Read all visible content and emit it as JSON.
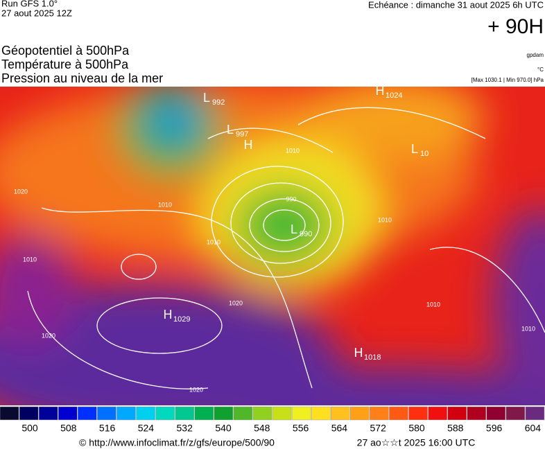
{
  "header": {
    "run": "Run GFS 1.0°",
    "date": "27 aout 2025 12Z",
    "valid": "Echéance : dimanche 31 aout 2025 6h UTC",
    "lead": "+ 90H"
  },
  "legend": {
    "lines": [
      "Géopotentiel à 500hPa",
      "Température à 500hPa",
      "Pression au niveau de la mer"
    ],
    "units": [
      "gpdam",
      "°C",
      "[Max 1030.1 | Min 970.0] hPa"
    ]
  },
  "pressure_centers": [
    {
      "symbol": "L",
      "value": "992"
    },
    {
      "symbol": "L",
      "value": "997"
    },
    {
      "symbol": "H",
      "value": null
    },
    {
      "symbol": "H",
      "value": "1024"
    },
    {
      "symbol": "L",
      "value": "10"
    },
    {
      "symbol": "L",
      "value": "990"
    },
    {
      "symbol": "H",
      "value": "1029"
    },
    {
      "symbol": "H",
      "value": "1018"
    }
  ],
  "isobar_labels": [
    "990",
    "1010",
    "1010",
    "1010",
    "1010",
    "1020",
    "1020",
    "1020",
    "1020",
    "1010",
    "1010",
    "1010"
  ],
  "colorbar": {
    "labels": [
      500,
      508,
      516,
      524,
      532,
      540,
      548,
      556,
      564,
      572,
      580,
      588,
      596,
      604
    ]
  },
  "footer": {
    "url": "© http://www.infoclimat.fr/z/gfs/europe/500/90",
    "timestamp": "27 ao☆☆t 2025 16:00 UTC"
  }
}
